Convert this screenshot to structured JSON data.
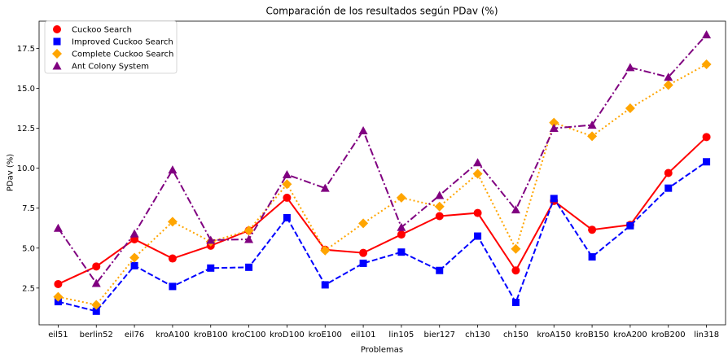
{
  "chart_data": {
    "type": "line",
    "title": "Comparación de los resultados según PDav (%)",
    "xlabel": "Problemas",
    "ylabel": "PDav (%)",
    "categories": [
      "eil51",
      "berlin52",
      "eil76",
      "kroA100",
      "kroB100",
      "kroC100",
      "kroD100",
      "kroE100",
      "eil101",
      "lin105",
      "bier127",
      "ch130",
      "ch150",
      "kroA150",
      "kroB150",
      "kroA200",
      "kroB200",
      "lin318"
    ],
    "ylim": [
      0.2,
      19.2
    ],
    "yticks": [
      2.5,
      5.0,
      7.5,
      10.0,
      12.5,
      15.0,
      17.5
    ],
    "ytick_labels": [
      "2.5",
      "5.0",
      "7.5",
      "10.0",
      "12.5",
      "15.0",
      "17.5"
    ],
    "grid": false,
    "legend_position": "top-left",
    "series": [
      {
        "name": "Cuckoo Search",
        "color": "#ff0000",
        "marker": "circle",
        "line_style": "solid",
        "values": [
          2.75,
          3.85,
          5.55,
          4.35,
          5.15,
          6.1,
          8.15,
          4.9,
          4.7,
          5.85,
          7.0,
          7.2,
          3.6,
          7.95,
          6.15,
          6.45,
          9.7,
          11.95
        ]
      },
      {
        "name": "Improved Cuckoo Search",
        "color": "#0000ff",
        "marker": "square",
        "line_style": "dashed",
        "values": [
          1.65,
          1.05,
          3.9,
          2.6,
          3.75,
          3.8,
          6.9,
          2.7,
          4.05,
          4.75,
          3.6,
          5.75,
          1.6,
          8.1,
          4.45,
          6.4,
          8.75,
          10.4
        ]
      },
      {
        "name": "Complete Cuckoo Search",
        "color": "#ffa500",
        "marker": "diamond",
        "line_style": "dotted",
        "values": [
          1.95,
          1.45,
          4.4,
          6.65,
          5.4,
          6.1,
          9.0,
          4.85,
          6.55,
          8.15,
          7.6,
          9.65,
          4.95,
          12.85,
          12.0,
          13.75,
          15.2,
          16.5
        ]
      },
      {
        "name": "Ant Colony System",
        "color": "#800080",
        "marker": "triangle",
        "line_style": "dashdot",
        "values": [
          6.25,
          2.8,
          5.9,
          9.9,
          5.5,
          5.55,
          9.6,
          8.75,
          12.35,
          6.3,
          8.3,
          10.35,
          7.4,
          12.5,
          12.7,
          16.3,
          15.7,
          18.35
        ]
      }
    ]
  }
}
